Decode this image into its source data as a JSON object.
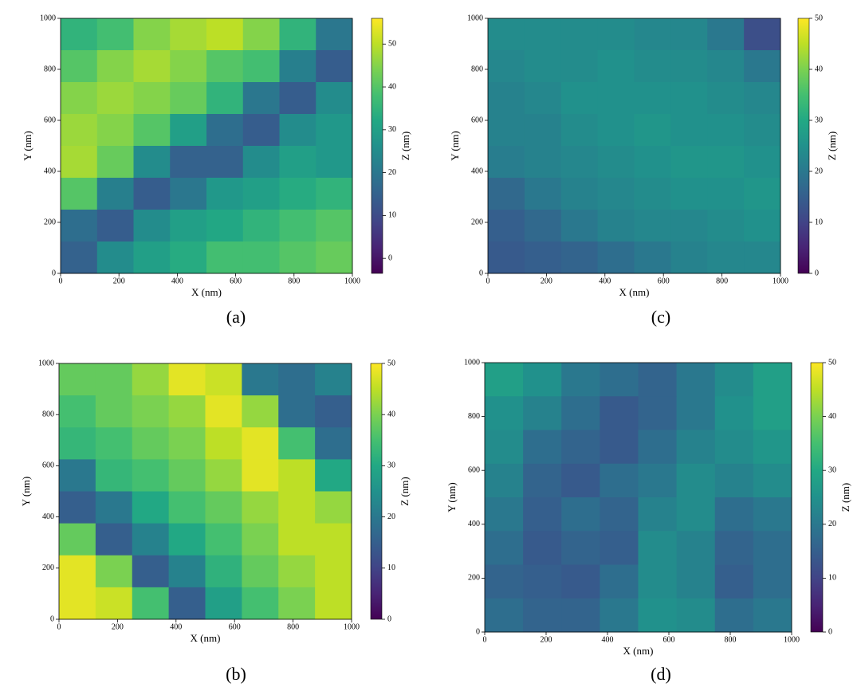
{
  "chart_data": [
    {
      "type": "heatmap",
      "caption": "(a)",
      "xlabel": "X (nm)",
      "ylabel": "Y (nm)",
      "zlabel": "Z (nm)",
      "colormap": "viridis",
      "xlim": [
        0,
        1000
      ],
      "ylim": [
        0,
        1000
      ],
      "xticks": [
        0,
        200,
        400,
        600,
        800,
        1000
      ],
      "yticks": [
        0,
        200,
        400,
        600,
        800,
        1000
      ],
      "zlim": [
        -3.5,
        56
      ],
      "zticks": [
        0,
        10,
        20,
        30,
        40,
        50
      ],
      "x": [
        62.5,
        187.5,
        312.5,
        437.5,
        562.5,
        687.5,
        812.5,
        937.5
      ],
      "y": [
        937.5,
        812.5,
        687.5,
        562.5,
        437.5,
        312.5,
        187.5,
        62.5
      ],
      "z": [
        [
          35,
          38,
          45,
          48,
          50,
          45,
          35,
          20
        ],
        [
          40,
          45,
          48,
          45,
          40,
          38,
          22,
          14
        ],
        [
          45,
          47,
          45,
          42,
          35,
          20,
          14,
          25
        ],
        [
          47,
          45,
          40,
          30,
          18,
          14,
          25,
          28
        ],
        [
          48,
          42,
          25,
          15,
          15,
          25,
          30,
          28
        ],
        [
          40,
          22,
          14,
          20,
          28,
          30,
          33,
          35
        ],
        [
          18,
          14,
          25,
          30,
          32,
          35,
          38,
          40
        ],
        [
          15,
          25,
          30,
          33,
          38,
          38,
          40,
          42
        ]
      ]
    },
    {
      "type": "heatmap",
      "caption": "(b)",
      "xlabel": "X (nm)",
      "ylabel": "Y (nm)",
      "zlabel": "Z (nm)",
      "colormap": "viridis",
      "xlim": [
        0,
        1000
      ],
      "ylim": [
        0,
        1000
      ],
      "xticks": [
        0,
        200,
        400,
        600,
        800,
        1000
      ],
      "yticks": [
        0,
        200,
        400,
        600,
        800,
        1000
      ],
      "zlim": [
        0,
        50
      ],
      "zticks": [
        0,
        10,
        20,
        30,
        40,
        50
      ],
      "x": [
        62.5,
        187.5,
        312.5,
        437.5,
        562.5,
        687.5,
        812.5,
        937.5
      ],
      "y": [
        937.5,
        812.5,
        687.5,
        562.5,
        437.5,
        312.5,
        187.5,
        62.5
      ],
      "z": [
        [
          38,
          38,
          42,
          48,
          46,
          20,
          18,
          22
        ],
        [
          35,
          38,
          40,
          42,
          48,
          42,
          18,
          15
        ],
        [
          33,
          35,
          38,
          40,
          45,
          48,
          35,
          18
        ],
        [
          20,
          33,
          35,
          38,
          42,
          48,
          45,
          30
        ],
        [
          15,
          20,
          30,
          35,
          38,
          42,
          45,
          42
        ],
        [
          38,
          15,
          22,
          30,
          35,
          40,
          45,
          45
        ],
        [
          48,
          40,
          15,
          22,
          32,
          38,
          42,
          45
        ],
        [
          48,
          46,
          35,
          15,
          28,
          35,
          40,
          45
        ]
      ]
    },
    {
      "type": "heatmap",
      "caption": "(c)",
      "xlabel": "X (nm)",
      "ylabel": "Y (nm)",
      "zlabel": "Z (nm)",
      "colormap": "viridis",
      "xlim": [
        0,
        1000
      ],
      "ylim": [
        0,
        1000
      ],
      "xticks": [
        0,
        200,
        400,
        600,
        800,
        1000
      ],
      "yticks": [
        0,
        200,
        400,
        600,
        800,
        1000
      ],
      "zlim": [
        0,
        50
      ],
      "zticks": [
        0,
        10,
        20,
        30,
        40,
        50
      ],
      "x": [
        62.5,
        187.5,
        312.5,
        437.5,
        562.5,
        687.5,
        812.5,
        937.5
      ],
      "y": [
        937.5,
        812.5,
        687.5,
        562.5,
        437.5,
        312.5,
        187.5,
        62.5
      ],
      "z": [
        [
          24,
          24,
          24,
          24,
          23,
          23,
          20,
          12
        ],
        [
          23,
          24,
          24,
          25,
          24,
          24,
          23,
          20
        ],
        [
          22,
          23,
          25,
          25,
          25,
          25,
          24,
          23
        ],
        [
          22,
          22,
          24,
          25,
          26,
          25,
          25,
          24
        ],
        [
          21,
          22,
          23,
          24,
          25,
          26,
          26,
          25
        ],
        [
          17,
          20,
          22,
          23,
          24,
          25,
          25,
          26
        ],
        [
          15,
          17,
          20,
          22,
          23,
          23,
          24,
          25
        ],
        [
          14,
          15,
          16,
          18,
          20,
          22,
          23,
          23
        ]
      ]
    },
    {
      "type": "heatmap",
      "caption": "(d)",
      "xlabel": "X (nm)",
      "ylabel": "Y (nm)",
      "zlabel": "Z (nm)",
      "colormap": "viridis",
      "xlim": [
        0,
        1000
      ],
      "ylim": [
        0,
        1000
      ],
      "xticks": [
        0,
        200,
        400,
        600,
        800,
        1000
      ],
      "yticks": [
        0,
        200,
        400,
        600,
        800,
        1000
      ],
      "zlim": [
        0,
        50
      ],
      "zticks": [
        0,
        10,
        20,
        30,
        40,
        50
      ],
      "x": [
        62.5,
        187.5,
        312.5,
        437.5,
        562.5,
        687.5,
        812.5,
        937.5
      ],
      "y": [
        937.5,
        812.5,
        687.5,
        562.5,
        437.5,
        312.5,
        187.5,
        62.5
      ],
      "z": [
        [
          28,
          25,
          20,
          18,
          16,
          20,
          24,
          28
        ],
        [
          25,
          22,
          18,
          14,
          16,
          20,
          25,
          28
        ],
        [
          24,
          18,
          16,
          14,
          18,
          22,
          24,
          26
        ],
        [
          22,
          16,
          14,
          18,
          20,
          24,
          22,
          24
        ],
        [
          20,
          15,
          18,
          16,
          22,
          24,
          18,
          20
        ],
        [
          18,
          14,
          16,
          15,
          24,
          22,
          16,
          18
        ],
        [
          16,
          15,
          14,
          18,
          24,
          22,
          15,
          18
        ],
        [
          18,
          16,
          16,
          20,
          25,
          24,
          18,
          20
        ]
      ]
    }
  ]
}
